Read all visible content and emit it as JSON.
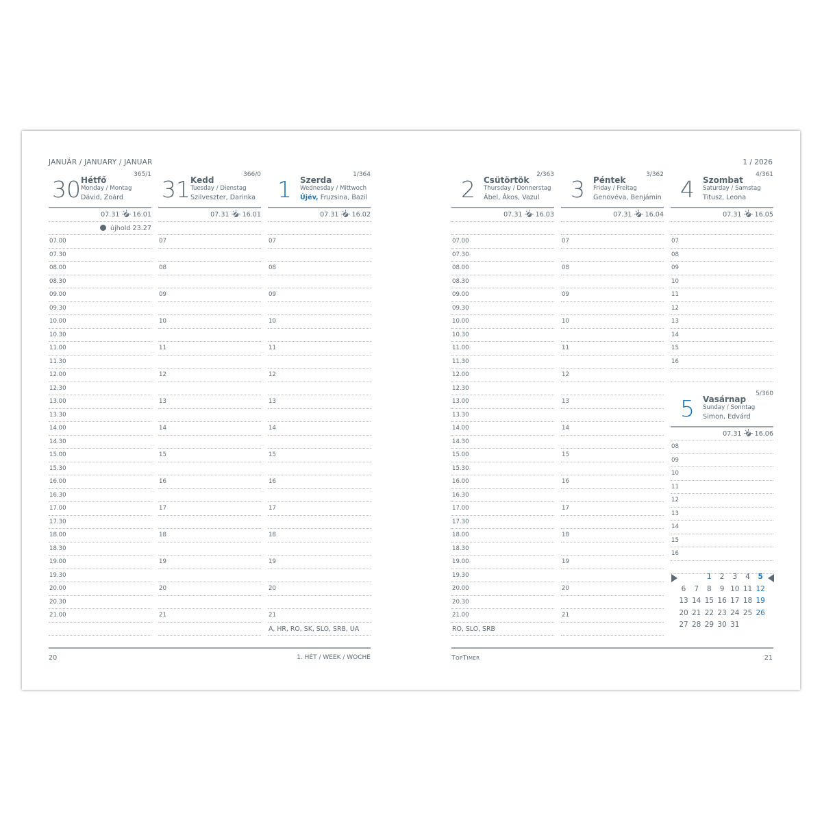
{
  "left_page": {
    "month_title": "JANUÁR / JANUARY / JANUAR",
    "page_number": "20",
    "week_label": "1. HÉT / WEEK / WOCHE",
    "holiday_note": "A, HR, RO, SK, SLO, SRB, UA"
  },
  "right_page": {
    "month_ref": "1 / 2026",
    "page_number": "21",
    "logo": "TopTimer",
    "holiday_note": "RO, SLO, SRB"
  },
  "colors": {
    "accent_blue": "#1a73b8",
    "text_gray": "#5c6a74",
    "rule_gray": "#9aa4aa"
  },
  "icons": {
    "sun": "sunrise-sunset-icon",
    "moon": "new-moon-dot-icon"
  },
  "time_labels_half": [
    "07.00",
    "07.30",
    "08.00",
    "08.30",
    "09.00",
    "09.30",
    "10.00",
    "10.30",
    "11.00",
    "11.30",
    "12.00",
    "12.30",
    "13.00",
    "13.30",
    "14.00",
    "14.30",
    "15.00",
    "15.30",
    "16.00",
    "16.30",
    "17.00",
    "17.30",
    "18.00",
    "18.30",
    "19.00",
    "19.30",
    "20.00",
    "20.30",
    "21.00"
  ],
  "time_labels_hour": [
    "07",
    "",
    "08",
    "",
    "09",
    "",
    "10",
    "",
    "11",
    "",
    "12",
    "",
    "13",
    "",
    "14",
    "",
    "15",
    "",
    "16",
    "",
    "17",
    "",
    "18",
    "",
    "19",
    "",
    "20",
    "",
    "21"
  ],
  "saturday_labels": [
    "07",
    "08",
    "09",
    "10",
    "11",
    "12",
    "13",
    "14",
    "15",
    "16"
  ],
  "sunday_labels": [
    "08",
    "09",
    "10",
    "11",
    "12",
    "13",
    "14",
    "15",
    "16"
  ],
  "days": [
    {
      "num": "30",
      "name": "Hétfő",
      "sub": "Monday / Montag",
      "names_hl": "",
      "names": "Dávid, Zoárd",
      "count": "365/1",
      "sunrise": "07.31",
      "sunset": "16.01",
      "moon": "újhold 23.27",
      "blue": false
    },
    {
      "num": "31",
      "name": "Kedd",
      "sub": "Tuesday / Dienstag",
      "names_hl": "",
      "names": "Szilveszter, Darinka",
      "count": "366/0",
      "sunrise": "07.31",
      "sunset": "16.01",
      "moon": "",
      "blue": false
    },
    {
      "num": "1",
      "name": "Szerda",
      "sub": "Wednesday / Mittwoch",
      "names_hl": "Újév,",
      "names": " Fruzsina, Bazil",
      "count": "1/364",
      "sunrise": "07.31",
      "sunset": "16.02",
      "moon": "",
      "blue": true
    },
    {
      "num": "2",
      "name": "Csütörtök",
      "sub": "Thursday / Donnerstag",
      "names_hl": "",
      "names": "Ábel, Ákos, Vazul",
      "count": "2/363",
      "sunrise": "07.31",
      "sunset": "16.03",
      "moon": "",
      "blue": false
    },
    {
      "num": "3",
      "name": "Péntek",
      "sub": "Friday / Freitag",
      "names_hl": "",
      "names": "Genovéva, Benjámin",
      "count": "3/362",
      "sunrise": "07.31",
      "sunset": "16.04",
      "moon": "",
      "blue": false
    },
    {
      "num": "4",
      "name": "Szombat",
      "sub": "Saturday / Samstag",
      "names_hl": "",
      "names": "Titusz, Leona",
      "count": "4/361",
      "sunrise": "07.31",
      "sunset": "16.05",
      "moon": "",
      "blue": false
    },
    {
      "num": "5",
      "name": "Vasárnap",
      "sub": "Sunday / Sonntag",
      "names_hl": "",
      "names": "Simon, Edvárd",
      "count": "5/360",
      "sunrise": "07.31",
      "sunset": "16.06",
      "moon": "",
      "blue": true
    }
  ],
  "mini_calendar": {
    "weeks": [
      [
        "",
        "",
        "1",
        "2",
        "3",
        "4",
        "5"
      ],
      [
        "6",
        "7",
        "8",
        "9",
        "10",
        "11",
        "12"
      ],
      [
        "13",
        "14",
        "15",
        "16",
        "17",
        "18",
        "19"
      ],
      [
        "20",
        "21",
        "22",
        "23",
        "24",
        "25",
        "26"
      ],
      [
        "27",
        "28",
        "29",
        "30",
        "31",
        "",
        ""
      ]
    ],
    "current_week_row": 0,
    "highlight_dates": [
      "1",
      "5",
      "12",
      "19",
      "26"
    ]
  }
}
